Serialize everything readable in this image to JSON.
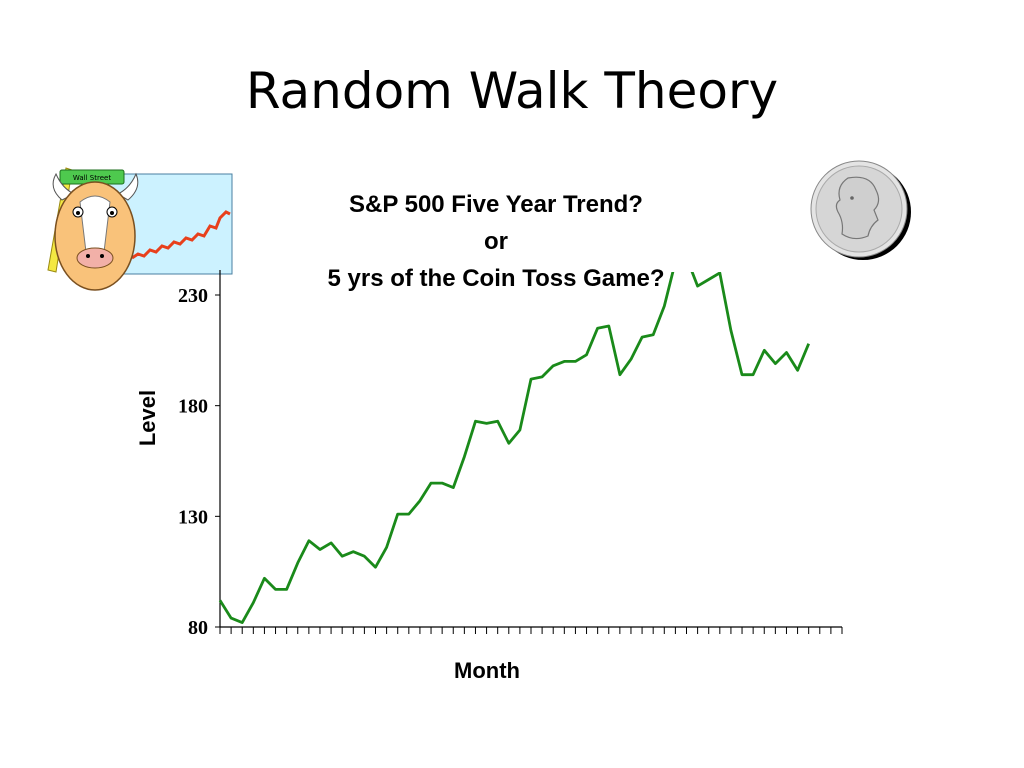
{
  "slide": {
    "title": "Random Walk Theory"
  },
  "images": {
    "bull": "wall-street-bull-clipart",
    "coin": "quarter-coin-image",
    "sign_text": "Wall Street"
  },
  "colors": {
    "line": "#1a8a1a",
    "axis": "#000000",
    "clip_line": "#e8401c",
    "clip_bg": "#ccf2ff"
  },
  "chart_data": {
    "type": "line",
    "title_lines": [
      "S&P 500 Five Year Trend?",
      "or",
      "5 yrs of the Coin Toss Game?"
    ],
    "xlabel": "Month",
    "ylabel": "Level",
    "ylim": [
      80,
      230
    ],
    "yticks": [
      80,
      130,
      180,
      230
    ],
    "x_tick_count": 57,
    "grid": false,
    "legend": "none",
    "series": [
      {
        "values": [
          92,
          84,
          82,
          91,
          102,
          97,
          97,
          109,
          119,
          115,
          118,
          112,
          114,
          112,
          107,
          116,
          131,
          131,
          137,
          145,
          145,
          143,
          157,
          173,
          172,
          173,
          163,
          169,
          192,
          193,
          198,
          200,
          200,
          203,
          215,
          216,
          194,
          201,
          211,
          212,
          225,
          245,
          247,
          234,
          237,
          240,
          214,
          194,
          194,
          205,
          199,
          204,
          196,
          208
        ]
      }
    ]
  }
}
